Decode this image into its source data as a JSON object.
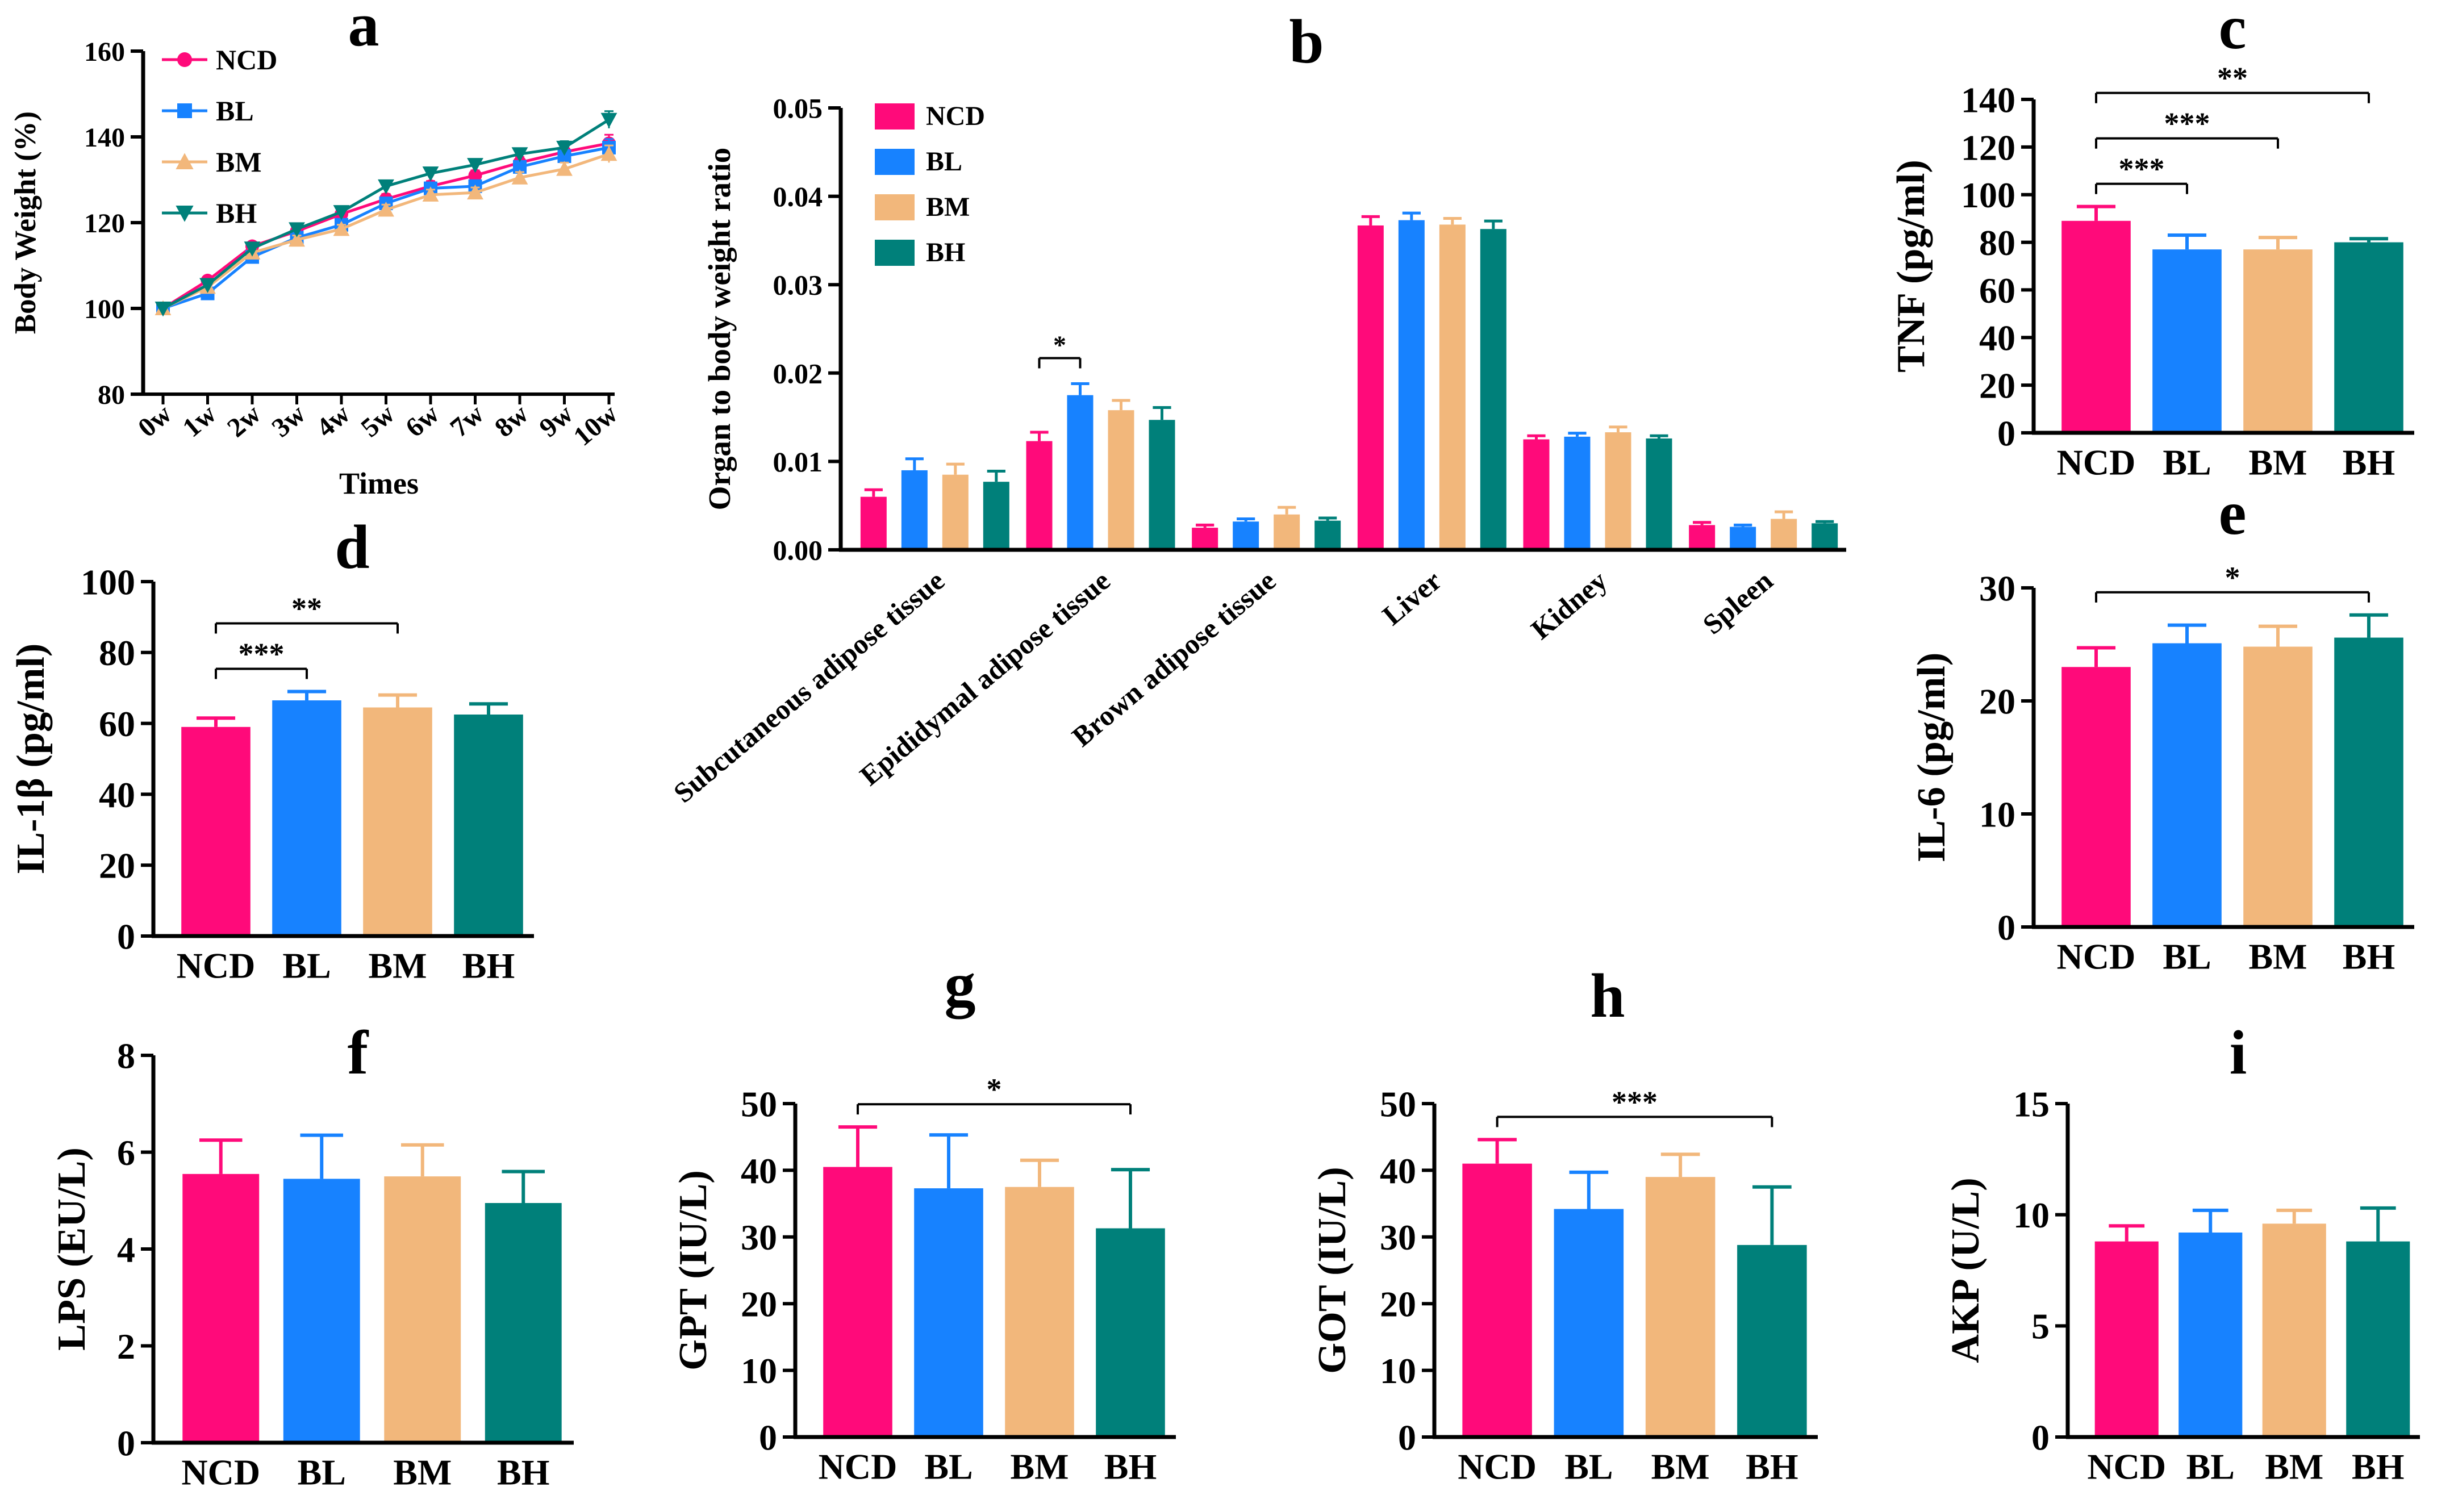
{
  "colors": {
    "NCD": "#FF0A7A",
    "BL": "#1782FF",
    "BM": "#F2B77B",
    "BH": "#00807A",
    "axis": "#000000"
  },
  "chart_data": [
    {
      "id": "a",
      "panel_label": "a",
      "type": "line",
      "xlabel": "Times",
      "ylabel": "Body Weight (%)",
      "categories": [
        "0w",
        "1w",
        "2w",
        "3w",
        "4w",
        "5w",
        "6w",
        "7w",
        "8w",
        "9w",
        "10w"
      ],
      "ylim": [
        80,
        160
      ],
      "yticks": [
        80,
        100,
        120,
        140,
        160
      ],
      "legend": [
        "NCD",
        "BL",
        "BM",
        "BH"
      ],
      "series": [
        {
          "name": "NCD",
          "marker": "circle",
          "values": [
            100,
            106.5,
            114.5,
            118,
            122,
            125.5,
            128.5,
            131,
            134,
            136.5,
            138.5
          ],
          "err": [
            0.5,
            0.8,
            1,
            1,
            1,
            1.2,
            1.2,
            1.2,
            1.3,
            1.5,
            2
          ]
        },
        {
          "name": "BL",
          "marker": "square",
          "values": [
            100,
            103.5,
            112,
            116.5,
            119.5,
            124.5,
            128,
            128.5,
            133,
            135.5,
            137.5
          ],
          "err": [
            0.5,
            0.8,
            1,
            1,
            1,
            1.2,
            1.2,
            1.2,
            1.3,
            1.5,
            2
          ]
        },
        {
          "name": "BM",
          "marker": "triangle-up",
          "values": [
            100,
            105,
            113,
            116,
            118.5,
            123,
            126.5,
            127,
            130.5,
            132.5,
            136
          ],
          "err": [
            0.5,
            0.8,
            1,
            1,
            1,
            1.2,
            1.2,
            1.2,
            1.3,
            1.5,
            2
          ]
        },
        {
          "name": "BH",
          "marker": "triangle-down",
          "values": [
            100,
            105.5,
            114,
            118.5,
            122.5,
            128.5,
            131.5,
            133.5,
            136,
            137.5,
            144
          ],
          "err": [
            0.5,
            0.8,
            1,
            1,
            1,
            1.2,
            1.2,
            1.2,
            1.3,
            1.5,
            2
          ]
        }
      ]
    },
    {
      "id": "b",
      "panel_label": "b",
      "type": "bar",
      "xlabel": "",
      "ylabel": "Organ to body weight ratio",
      "categories": [
        "Subcutaneous adipose tissue",
        "Epididymal adipose tissue",
        "Brown adipose tissue",
        "Liver",
        "Kidney",
        "Spleen"
      ],
      "ylim": [
        0,
        0.05
      ],
      "yticks": [
        "0.00",
        "0.01",
        "0.02",
        "0.03",
        "0.04",
        "0.05"
      ],
      "legend": [
        "NCD",
        "BL",
        "BM",
        "BH"
      ],
      "series": [
        {
          "name": "NCD",
          "values": [
            0.006,
            0.0123,
            0.0025,
            0.0367,
            0.0125,
            0.0028
          ],
          "err": [
            0.0008,
            0.001,
            0.0003,
            0.001,
            0.0004,
            0.0003
          ]
        },
        {
          "name": "BL",
          "values": [
            0.009,
            0.0175,
            0.0032,
            0.0373,
            0.0128,
            0.0026
          ],
          "err": [
            0.0013,
            0.0013,
            0.0003,
            0.0008,
            0.0004,
            0.0002
          ]
        },
        {
          "name": "BM",
          "values": [
            0.0085,
            0.0158,
            0.004,
            0.0368,
            0.0133,
            0.0035
          ],
          "err": [
            0.0012,
            0.0011,
            0.0008,
            0.0007,
            0.0006,
            0.0008
          ]
        },
        {
          "name": "BH",
          "values": [
            0.0077,
            0.0147,
            0.0033,
            0.0363,
            0.0126,
            0.003
          ],
          "err": [
            0.0012,
            0.0014,
            0.0003,
            0.0009,
            0.0003,
            0.0002
          ]
        }
      ],
      "annotations": [
        {
          "text": "*",
          "category": 1,
          "from": 0,
          "to": 1
        }
      ]
    },
    {
      "id": "c",
      "panel_label": "c",
      "type": "bar",
      "ylabel": "TNF (pg/ml)",
      "categories": [
        "NCD",
        "BL",
        "BM",
        "BH"
      ],
      "ylim": [
        0,
        140
      ],
      "yticks": [
        0,
        20,
        40,
        60,
        80,
        100,
        120,
        140
      ],
      "values": [
        89,
        77,
        77,
        80
      ],
      "err": [
        6,
        6,
        5,
        1.5
      ],
      "annotations": [
        {
          "text": "***",
          "from": 0,
          "to": 1
        },
        {
          "text": "***",
          "from": 0,
          "to": 2
        },
        {
          "text": "**",
          "from": 0,
          "to": 3
        }
      ]
    },
    {
      "id": "d",
      "panel_label": "d",
      "type": "bar",
      "ylabel": "IL-1β (pg/ml)",
      "categories": [
        "NCD",
        "BL",
        "BM",
        "BH"
      ],
      "ylim": [
        0,
        100
      ],
      "yticks": [
        0,
        20,
        40,
        60,
        80,
        100
      ],
      "values": [
        59,
        66.5,
        64.5,
        62.5
      ],
      "err": [
        2.5,
        2.5,
        3.5,
        3
      ],
      "annotations": [
        {
          "text": "***",
          "from": 0,
          "to": 1
        },
        {
          "text": "**",
          "from": 0,
          "to": 2
        }
      ]
    },
    {
      "id": "e",
      "panel_label": "e",
      "type": "bar",
      "ylabel": "IL-6 (pg/ml)",
      "categories": [
        "NCD",
        "BL",
        "BM",
        "BH"
      ],
      "ylim": [
        0,
        30
      ],
      "yticks": [
        0,
        10,
        20,
        30
      ],
      "values": [
        23,
        25.1,
        24.8,
        25.6
      ],
      "err": [
        1.7,
        1.6,
        1.8,
        2
      ],
      "annotations": [
        {
          "text": "*",
          "from": 0,
          "to": 3
        }
      ]
    },
    {
      "id": "f",
      "panel_label": "f",
      "type": "bar",
      "ylabel": "LPS (EU/L)",
      "categories": [
        "NCD",
        "BL",
        "BM",
        "BH"
      ],
      "ylim": [
        0,
        8
      ],
      "yticks": [
        0,
        2,
        4,
        6,
        8
      ],
      "values": [
        5.55,
        5.45,
        5.5,
        4.95
      ],
      "err": [
        0.7,
        0.9,
        0.65,
        0.65
      ],
      "annotations": []
    },
    {
      "id": "g",
      "panel_label": "g",
      "type": "bar",
      "ylabel": "GPT (IU/L)",
      "categories": [
        "NCD",
        "BL",
        "BM",
        "BH"
      ],
      "ylim": [
        0,
        50
      ],
      "yticks": [
        0,
        10,
        20,
        30,
        40,
        50
      ],
      "values": [
        40.5,
        37.3,
        37.5,
        31.3
      ],
      "err": [
        6,
        8,
        4,
        8.8
      ],
      "annotations": [
        {
          "text": "*",
          "from": 0,
          "to": 3
        }
      ]
    },
    {
      "id": "h",
      "panel_label": "h",
      "type": "bar",
      "ylabel": "GOT (IU/L)",
      "categories": [
        "NCD",
        "BL",
        "BM",
        "BH"
      ],
      "ylim": [
        0,
        50
      ],
      "yticks": [
        0,
        10,
        20,
        30,
        40,
        50
      ],
      "values": [
        41,
        34.2,
        39,
        28.8
      ],
      "err": [
        3.6,
        5.5,
        3.4,
        8.7
      ],
      "annotations": [
        {
          "text": "***",
          "from": 0,
          "to": 3
        }
      ]
    },
    {
      "id": "i",
      "panel_label": "i",
      "type": "bar",
      "ylabel": "AKP (U/L)",
      "categories": [
        "NCD",
        "BL",
        "BM",
        "BH"
      ],
      "ylim": [
        0,
        15
      ],
      "yticks": [
        0,
        5,
        10,
        15
      ],
      "values": [
        8.8,
        9.2,
        9.6,
        8.8
      ],
      "err": [
        0.7,
        1,
        0.6,
        1.5
      ],
      "annotations": []
    }
  ]
}
